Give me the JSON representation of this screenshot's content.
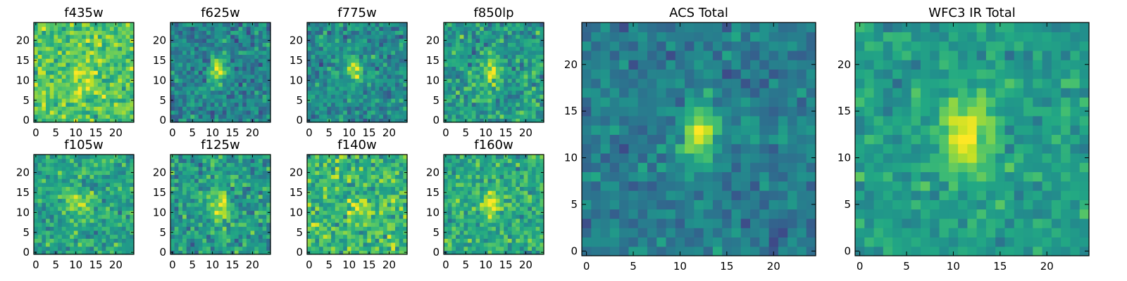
{
  "chart_data": {
    "type": "heatmap",
    "colormap": "viridis",
    "grid_size": 25,
    "panels": [
      {
        "title": "f435w",
        "xticks": [
          "0",
          "5",
          "10",
          "15",
          "20"
        ],
        "yticks": [
          "0",
          "5",
          "10",
          "15",
          "20"
        ],
        "source": {
          "x": 12,
          "y": 12,
          "sx": 2.5,
          "sy": 3.5,
          "amp": 0.15
        },
        "base": 0.72,
        "noise": 0.22,
        "seed": 11
      },
      {
        "title": "f625w",
        "xticks": [
          "0",
          "5",
          "10",
          "15",
          "20"
        ],
        "yticks": [
          "0",
          "5",
          "10",
          "15",
          "20"
        ],
        "source": {
          "x": 11.5,
          "y": 12.5,
          "sx": 1.3,
          "sy": 2.2,
          "amp": 0.55
        },
        "base": 0.45,
        "noise": 0.2,
        "seed": 22
      },
      {
        "title": "f775w",
        "xticks": [
          "0",
          "5",
          "10",
          "15",
          "20"
        ],
        "yticks": [
          "0",
          "5",
          "10",
          "15",
          "20"
        ],
        "source": {
          "x": 11.5,
          "y": 13,
          "sx": 1.3,
          "sy": 2.2,
          "amp": 0.5
        },
        "base": 0.48,
        "noise": 0.2,
        "seed": 33
      },
      {
        "title": "f850lp",
        "xticks": [
          "0",
          "5",
          "10",
          "15",
          "20"
        ],
        "yticks": [
          "0",
          "5",
          "10",
          "15",
          "20"
        ],
        "source": {
          "x": 11.5,
          "y": 12.5,
          "sx": 1.4,
          "sy": 2.2,
          "amp": 0.4
        },
        "base": 0.55,
        "noise": 0.22,
        "seed": 44
      },
      {
        "title": "f105w",
        "xticks": [
          "0",
          "5",
          "10",
          "15",
          "20"
        ],
        "yticks": [
          "0",
          "5",
          "10",
          "15",
          "20"
        ],
        "source": {
          "x": 11.5,
          "y": 12,
          "sx": 2.0,
          "sy": 2.5,
          "amp": 0.25
        },
        "base": 0.58,
        "noise": 0.2,
        "seed": 55
      },
      {
        "title": "f125w",
        "xticks": [
          "0",
          "5",
          "10",
          "15",
          "20"
        ],
        "yticks": [
          "0",
          "5",
          "10",
          "15",
          "20"
        ],
        "source": {
          "x": 12,
          "y": 11.5,
          "sx": 1.6,
          "sy": 2.6,
          "amp": 0.45
        },
        "base": 0.55,
        "noise": 0.22,
        "seed": 66
      },
      {
        "title": "f140w",
        "xticks": [
          "0",
          "5",
          "10",
          "15",
          "20"
        ],
        "yticks": [
          "0",
          "5",
          "10",
          "15",
          "20"
        ],
        "source": {
          "x": 12,
          "y": 12,
          "sx": 2.0,
          "sy": 2.5,
          "amp": 0.2
        },
        "base": 0.65,
        "noise": 0.25,
        "seed": 77
      },
      {
        "title": "f160w",
        "xticks": [
          "0",
          "5",
          "10",
          "15",
          "20"
        ],
        "yticks": [
          "0",
          "5",
          "10",
          "15",
          "20"
        ],
        "source": {
          "x": 11.5,
          "y": 12,
          "sx": 1.8,
          "sy": 2.4,
          "amp": 0.4
        },
        "base": 0.6,
        "noise": 0.2,
        "seed": 88
      },
      {
        "title": "ACS Total",
        "xticks": [
          "0",
          "5",
          "10",
          "15",
          "20"
        ],
        "yticks": [
          "0",
          "5",
          "10",
          "15",
          "20"
        ],
        "source": {
          "x": 12,
          "y": 12.5,
          "sx": 1.3,
          "sy": 2.2,
          "amp": 0.55
        },
        "base": 0.42,
        "noise": 0.15,
        "seed": 99
      },
      {
        "title": "WFC3 IR Total",
        "xticks": [
          "0",
          "5",
          "10",
          "15",
          "20"
        ],
        "yticks": [
          "0",
          "5",
          "10",
          "15",
          "20"
        ],
        "source": {
          "x": 11.5,
          "y": 12.5,
          "sx": 1.8,
          "sy": 2.8,
          "amp": 0.45
        },
        "base": 0.55,
        "noise": 0.15,
        "seed": 123
      }
    ]
  }
}
